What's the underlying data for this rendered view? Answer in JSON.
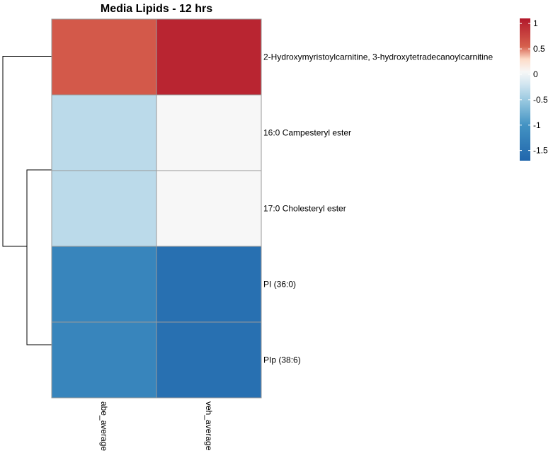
{
  "chart_data": {
    "type": "heatmap",
    "title": "Media Lipids - 12 hrs",
    "columns": [
      "abe_average",
      "veh_average"
    ],
    "rows": [
      "2-Hydroxymyristoylcarnitine, 3-hydroxytetradecanoylcarnitine",
      "16:0 Campesteryl ester",
      "17:0 Cholesteryl ester",
      "PI (36:0)",
      "PIp (38:6)"
    ],
    "values": [
      [
        0.6,
        1.0
      ],
      [
        -0.32,
        0.05
      ],
      [
        -0.32,
        0.05
      ],
      [
        -1.22,
        -1.55
      ],
      [
        -1.22,
        -1.55
      ]
    ],
    "color_scale": {
      "min": -1.7,
      "max": 1.1,
      "stops": [
        {
          "value": -1.7,
          "color": "#2166ac"
        },
        {
          "value": -1.0,
          "color": "#4393c3"
        },
        {
          "value": -0.55,
          "color": "#92c5de"
        },
        {
          "value": -0.2,
          "color": "#d1e5f0"
        },
        {
          "value": 0.05,
          "color": "#f7f7f7"
        },
        {
          "value": 0.3,
          "color": "#fddbc7"
        },
        {
          "value": 0.55,
          "color": "#d6604d"
        },
        {
          "value": 1.1,
          "color": "#b2182b"
        }
      ],
      "ticks": [
        1,
        0.5,
        0,
        -0.5,
        -1,
        -1.5
      ],
      "tick_labels": [
        "1",
        "0.5",
        "0",
        "-0.5",
        "-1",
        "-1.5"
      ]
    },
    "row_dendrogram": {
      "merges": [
        {
          "rows": [
            3,
            4
          ]
        },
        {
          "rows": [
            1,
            2
          ]
        },
        {
          "groups": [
            "1-2",
            "3-4"
          ]
        },
        {
          "groups": [
            "0",
            "1-4"
          ]
        }
      ]
    }
  }
}
